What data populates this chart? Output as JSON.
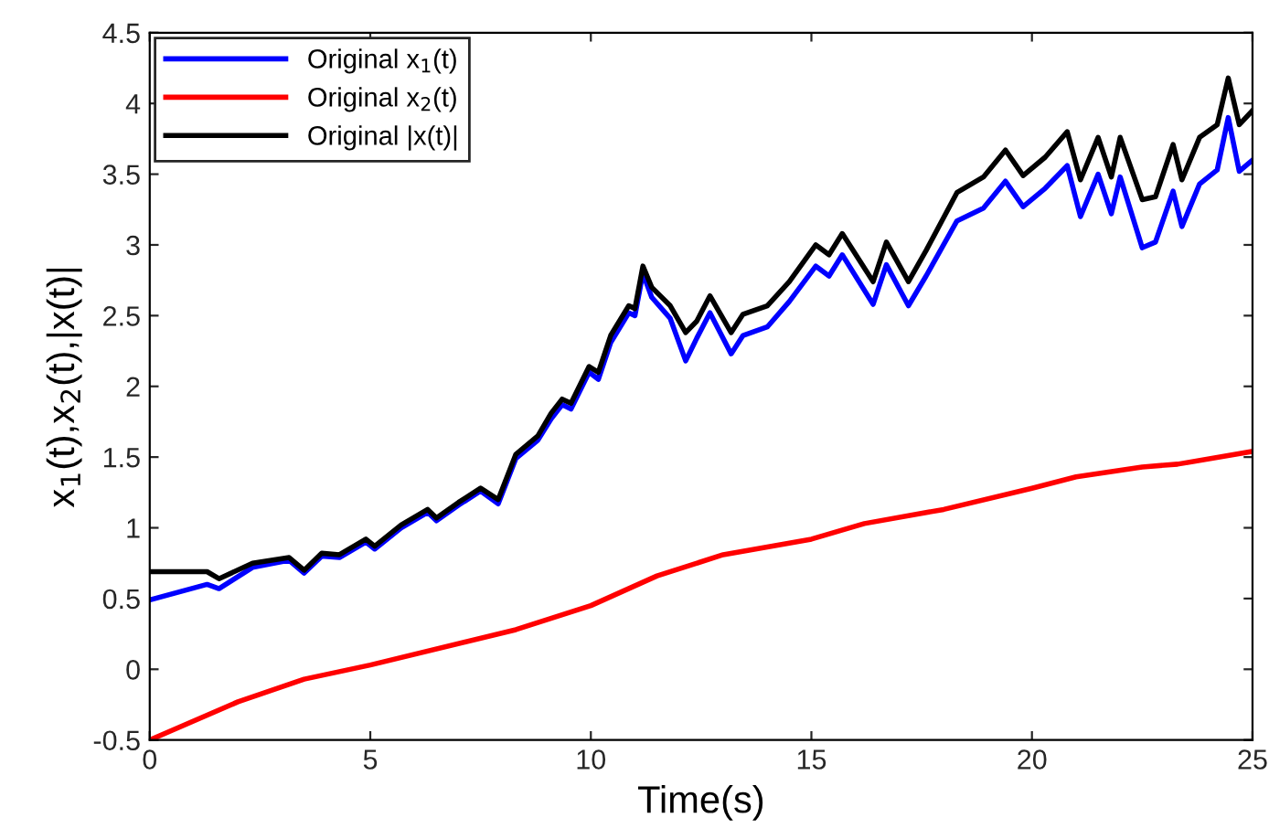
{
  "chart_data": {
    "type": "line",
    "xlabel": "Time(s)",
    "ylabel": "x$_{1}$(t),x$_{2}$(t),|x(t)|",
    "xlim": [
      0,
      25
    ],
    "ylim": [
      -0.5,
      4.5
    ],
    "xticks": [
      0,
      5,
      10,
      15,
      20,
      25
    ],
    "yticks": [
      -0.5,
      0,
      0.5,
      1,
      1.5,
      2,
      2.5,
      3,
      3.5,
      4,
      4.5
    ],
    "grid": false,
    "legend": "top left",
    "line_style": "solid",
    "marker": "none",
    "series": [
      {
        "name": "Original x$_{1}$(t)",
        "color": "#0000ff",
        "x": [
          0,
          1.3,
          1.57,
          2.33,
          3.16,
          3.5,
          3.9,
          4.3,
          4.9,
          5.1,
          5.7,
          6.3,
          6.5,
          7.0,
          7.5,
          7.9,
          8.3,
          8.8,
          9.1,
          9.35,
          9.55,
          9.96,
          10.17,
          10.45,
          10.86,
          11.0,
          11.18,
          11.38,
          11.8,
          12.15,
          12.4,
          12.7,
          13.18,
          13.45,
          14.0,
          14.5,
          15.1,
          15.4,
          15.7,
          16.4,
          16.7,
          17.2,
          17.6,
          18.3,
          18.9,
          19.4,
          19.8,
          20.3,
          20.8,
          21.1,
          21.5,
          21.8,
          22.0,
          22.5,
          22.8,
          23.2,
          23.4,
          23.8,
          24.2,
          24.45,
          24.7,
          25
        ],
        "values": [
          0.49,
          0.6,
          0.57,
          0.72,
          0.77,
          0.68,
          0.8,
          0.79,
          0.9,
          0.85,
          1.0,
          1.11,
          1.05,
          1.16,
          1.26,
          1.17,
          1.49,
          1.62,
          1.77,
          1.87,
          1.84,
          2.1,
          2.05,
          2.31,
          2.52,
          2.5,
          2.8,
          2.63,
          2.48,
          2.18,
          2.34,
          2.52,
          2.23,
          2.36,
          2.42,
          2.6,
          2.85,
          2.78,
          2.93,
          2.58,
          2.86,
          2.57,
          2.78,
          3.17,
          3.26,
          3.45,
          3.27,
          3.4,
          3.56,
          3.2,
          3.5,
          3.22,
          3.48,
          2.98,
          3.02,
          3.38,
          3.13,
          3.43,
          3.53,
          3.9,
          3.52,
          3.6
        ]
      },
      {
        "name": "Original x$_{2}$(t)",
        "color": "#ff0000",
        "x": [
          0,
          2,
          3.5,
          5.0,
          8.3,
          10,
          11.5,
          13,
          15,
          16.2,
          18,
          20,
          21,
          22.5,
          23.3,
          25
        ],
        "values": [
          -0.5,
          -0.23,
          -0.07,
          0.03,
          0.28,
          0.45,
          0.66,
          0.81,
          0.92,
          1.03,
          1.13,
          1.28,
          1.36,
          1.43,
          1.45,
          1.54
        ]
      },
      {
        "name": "Original |x(t)|",
        "color": "#000000",
        "x": [
          0,
          1.3,
          1.57,
          2.33,
          3.16,
          3.5,
          3.9,
          4.3,
          4.9,
          5.1,
          5.7,
          6.3,
          6.5,
          7.0,
          7.5,
          7.9,
          8.3,
          8.8,
          9.1,
          9.35,
          9.55,
          9.96,
          10.17,
          10.45,
          10.86,
          11.0,
          11.18,
          11.38,
          11.8,
          12.15,
          12.4,
          12.7,
          13.18,
          13.45,
          14.0,
          14.5,
          15.1,
          15.4,
          15.7,
          16.4,
          16.7,
          17.2,
          17.6,
          18.3,
          18.9,
          19.4,
          19.8,
          20.3,
          20.8,
          21.1,
          21.5,
          21.8,
          22.0,
          22.5,
          22.8,
          23.2,
          23.4,
          23.8,
          24.2,
          24.45,
          24.7,
          25
        ],
        "values": [
          0.69,
          0.69,
          0.64,
          0.75,
          0.79,
          0.7,
          0.82,
          0.81,
          0.92,
          0.87,
          1.02,
          1.13,
          1.07,
          1.18,
          1.28,
          1.2,
          1.52,
          1.65,
          1.81,
          1.91,
          1.88,
          2.14,
          2.1,
          2.36,
          2.57,
          2.55,
          2.85,
          2.7,
          2.57,
          2.38,
          2.46,
          2.64,
          2.38,
          2.51,
          2.57,
          2.74,
          3.0,
          2.93,
          3.08,
          2.74,
          3.02,
          2.74,
          2.96,
          3.37,
          3.48,
          3.67,
          3.49,
          3.62,
          3.8,
          3.46,
          3.76,
          3.48,
          3.76,
          3.32,
          3.34,
          3.71,
          3.46,
          3.76,
          3.85,
          4.18,
          3.85,
          3.95
        ]
      }
    ]
  }
}
